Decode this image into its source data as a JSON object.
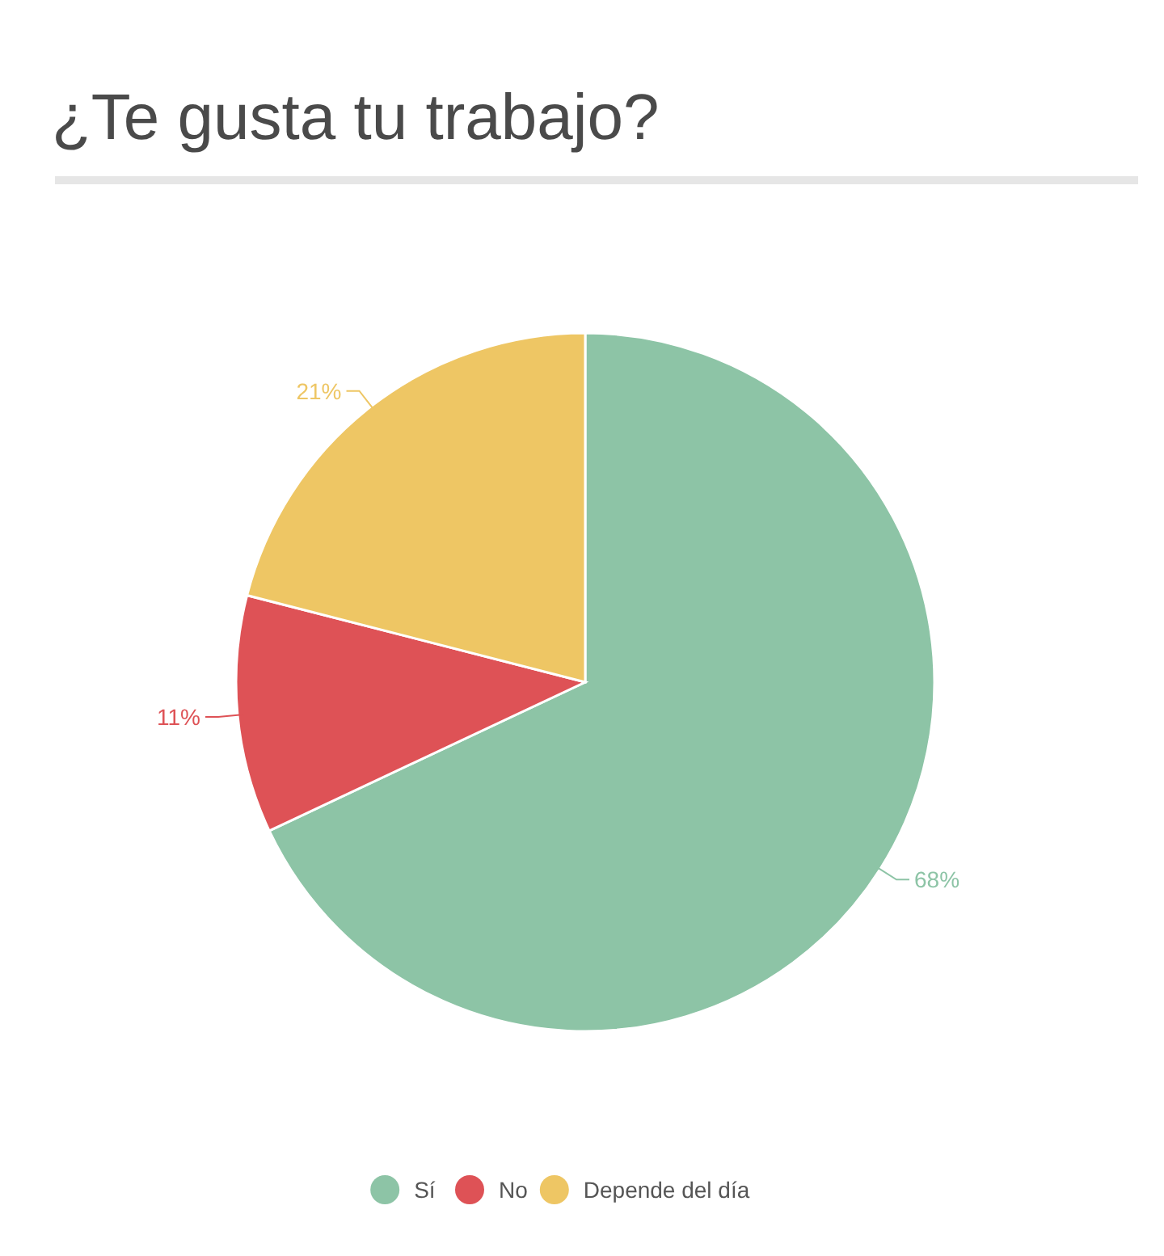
{
  "chart_data": {
    "type": "pie",
    "title": "¿Te gusta tu trabajo?",
    "categories": [
      "Sí",
      "No",
      "Depende del día"
    ],
    "values": [
      68,
      11,
      21
    ],
    "colors": [
      "#8dc4a6",
      "#de5256",
      "#eec664"
    ],
    "value_labels": [
      "68%",
      "11%",
      "21%"
    ],
    "legend": "bottom"
  }
}
